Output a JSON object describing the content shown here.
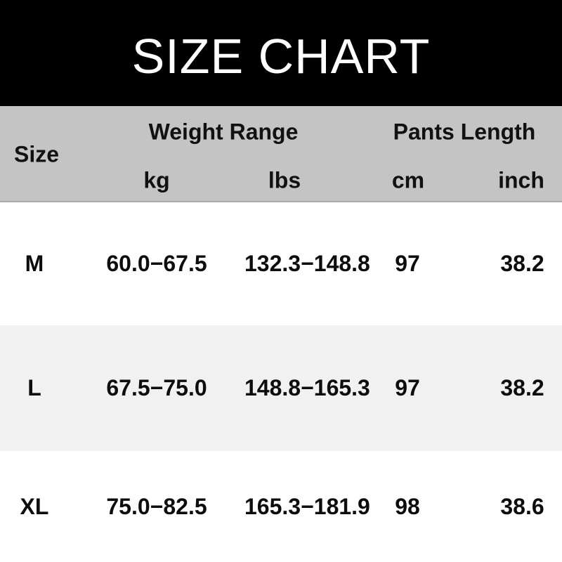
{
  "title": "SIZE CHART",
  "colors": {
    "title_bg": "#000000",
    "title_text": "#ffffff",
    "header_bg": "#c4c4c4",
    "row_bg": "#ffffff",
    "row_alt_bg": "#f1f1f1",
    "text": "#0d0d0d"
  },
  "table": {
    "headers": {
      "size": "Size",
      "weight_range": "Weight Range",
      "pants_length": "Pants Length",
      "kg": "kg",
      "lbs": "lbs",
      "cm": "cm",
      "inch": "inch"
    },
    "rows": [
      {
        "size": "M",
        "weight_kg": "60.0−67.5",
        "weight_lbs": "132.3−148.8",
        "length_cm": "97",
        "length_inch": "38.2"
      },
      {
        "size": "L",
        "weight_kg": "67.5−75.0",
        "weight_lbs": "148.8−165.3",
        "length_cm": "97",
        "length_inch": "38.2"
      },
      {
        "size": "XL",
        "weight_kg": "75.0−82.5",
        "weight_lbs": "165.3−181.9",
        "length_cm": "98",
        "length_inch": "38.6"
      }
    ]
  },
  "chart_data": {
    "type": "table",
    "title": "SIZE CHART",
    "columns": [
      "Size",
      "Weight Range (kg)",
      "Weight Range (lbs)",
      "Pants Length (cm)",
      "Pants Length (inch)"
    ],
    "rows": [
      [
        "M",
        "60.0-67.5",
        "132.3-148.8",
        "97",
        "38.2"
      ],
      [
        "L",
        "67.5-75.0",
        "148.8-165.3",
        "97",
        "38.2"
      ],
      [
        "XL",
        "75.0-82.5",
        "165.3-181.9",
        "98",
        "38.6"
      ]
    ]
  }
}
